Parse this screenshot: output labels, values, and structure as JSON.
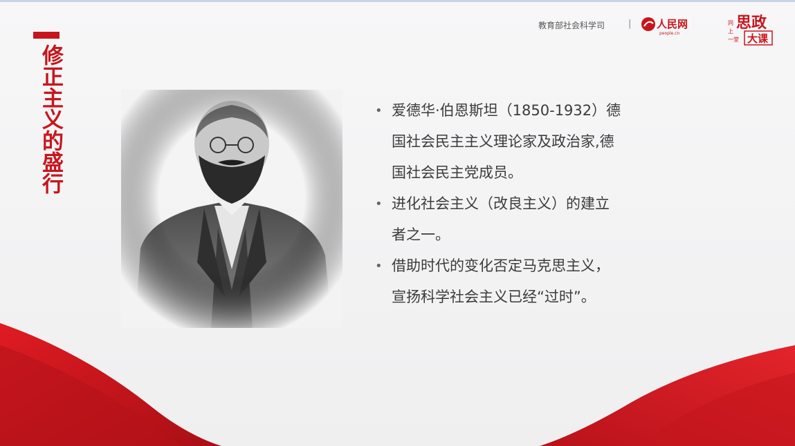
{
  "slide": {
    "title": "修正主义的盛行",
    "header": {
      "org": "教育部社会科学司",
      "separator": "|",
      "logo_people_text": "人民网",
      "logo_people_sub": "people.cn",
      "logo_class_main": "思政",
      "logo_class_sub": "大课",
      "logo_class_side": "同上一堂"
    },
    "bullets": [
      "爱德华·伯恩斯坦（1850-1932）德国社会民主主义理论家及政治家,德国社会民主党成员。",
      "进化社会主义（改良主义）的建立者之一。",
      "借助时代的变化否定马克思主义，宣扬科学社会主义已经“过时”。"
    ],
    "bullet_lines": [
      [
        "爱德华·伯恩斯坦（1850-1932）德",
        "国社会民主主义理论家及政治家,德",
        "国社会民主党成员。"
      ],
      [
        "进化社会主义（改良主义）的建立",
        "者之一。"
      ],
      [
        "借助时代的变化否定马克思主义，",
        "宣扬科学社会主义已经“过时”。"
      ]
    ],
    "colors": {
      "accent": "#c8151d",
      "text": "#3b3b3b",
      "background": "#f3f3f4"
    }
  }
}
